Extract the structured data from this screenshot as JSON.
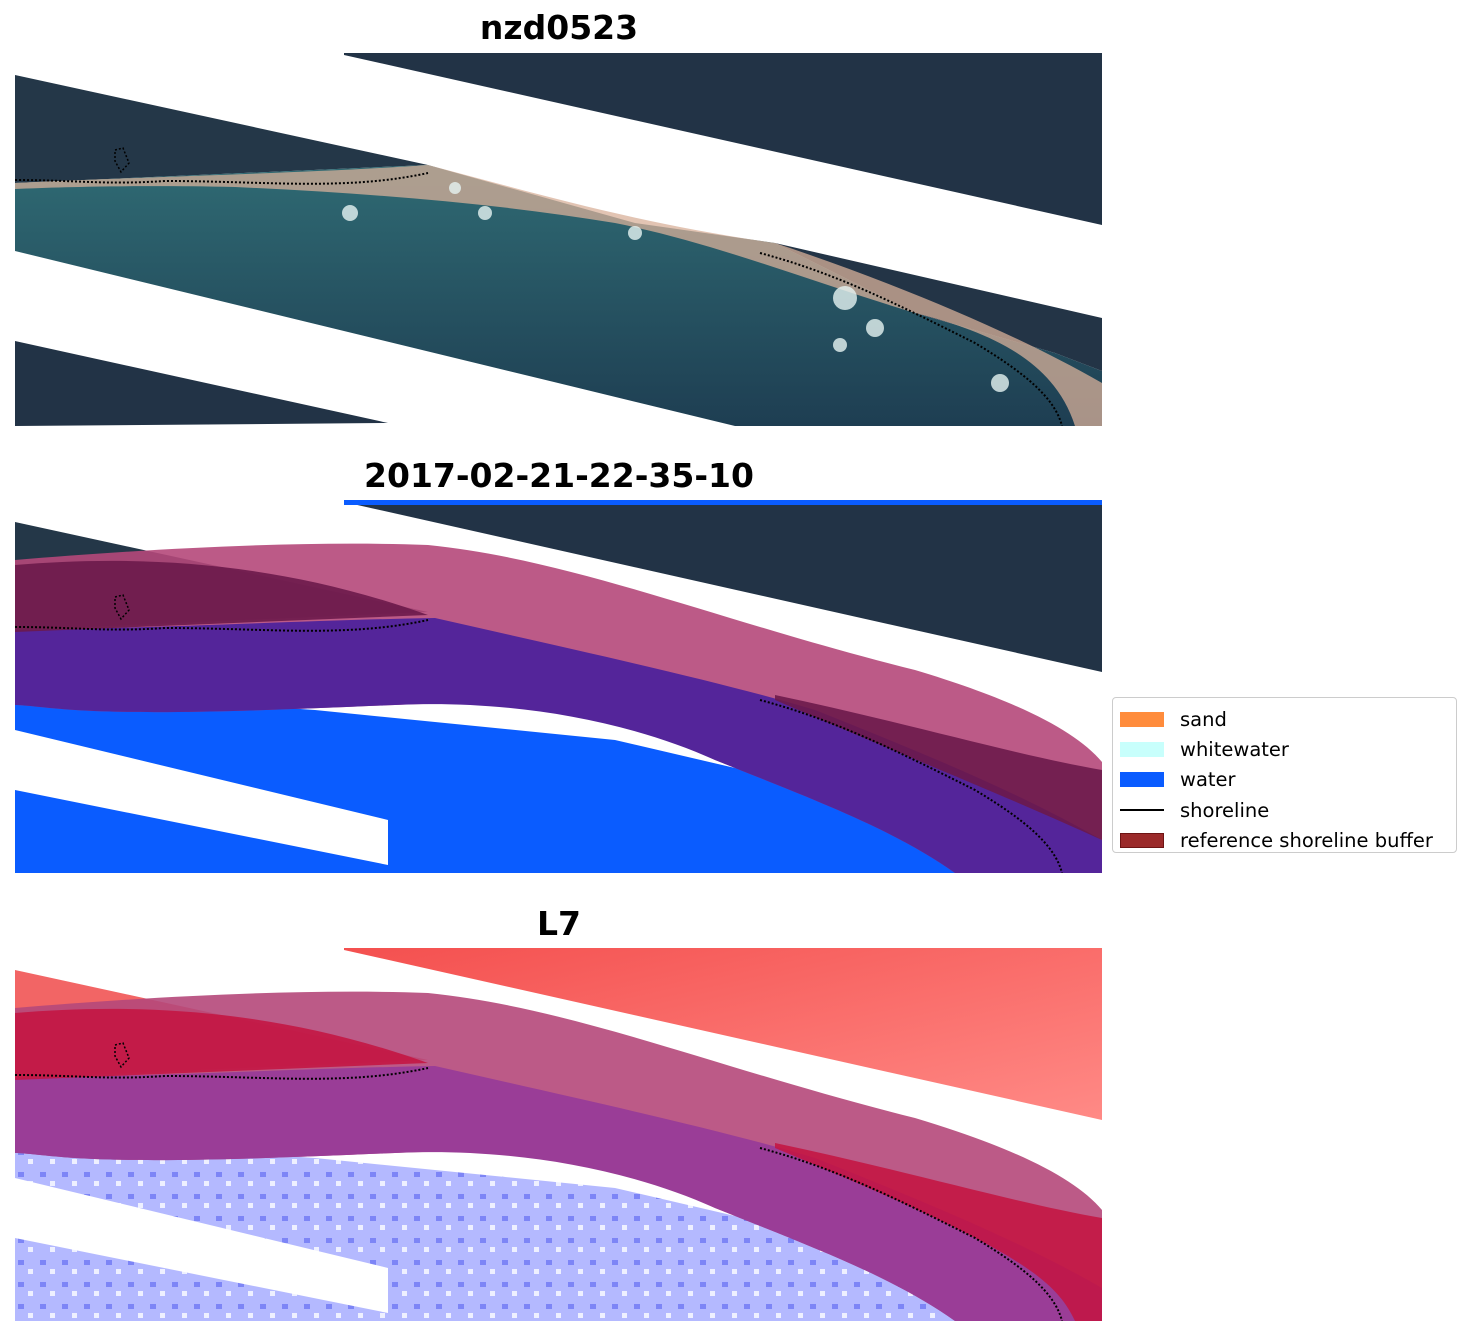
{
  "panels": [
    {
      "title": "nzd0523"
    },
    {
      "title": "2017-02-21-22-35-10"
    },
    {
      "title": "L7"
    }
  ],
  "legend": {
    "items": [
      {
        "label": "sand",
        "color": "#ff8c3c",
        "kind": "patch"
      },
      {
        "label": "whitewater",
        "color": "#c8fffc",
        "kind": "patch"
      },
      {
        "label": "water",
        "color": "#0a5cff",
        "kind": "patch"
      },
      {
        "label": "shoreline",
        "color": "#000000",
        "kind": "line"
      },
      {
        "label": "reference shoreline buffer",
        "color": "#9b2a2a",
        "edge": "#6e1414",
        "kind": "patch"
      }
    ]
  },
  "colors": {
    "land_dark": "#223346",
    "sea": "#24505e",
    "water_class": "#0a5cff",
    "buffer_overlay": "#b5487a",
    "red_band": "#f0605e",
    "blue_band": "#aab0ff",
    "beach": "#d8b09a"
  }
}
